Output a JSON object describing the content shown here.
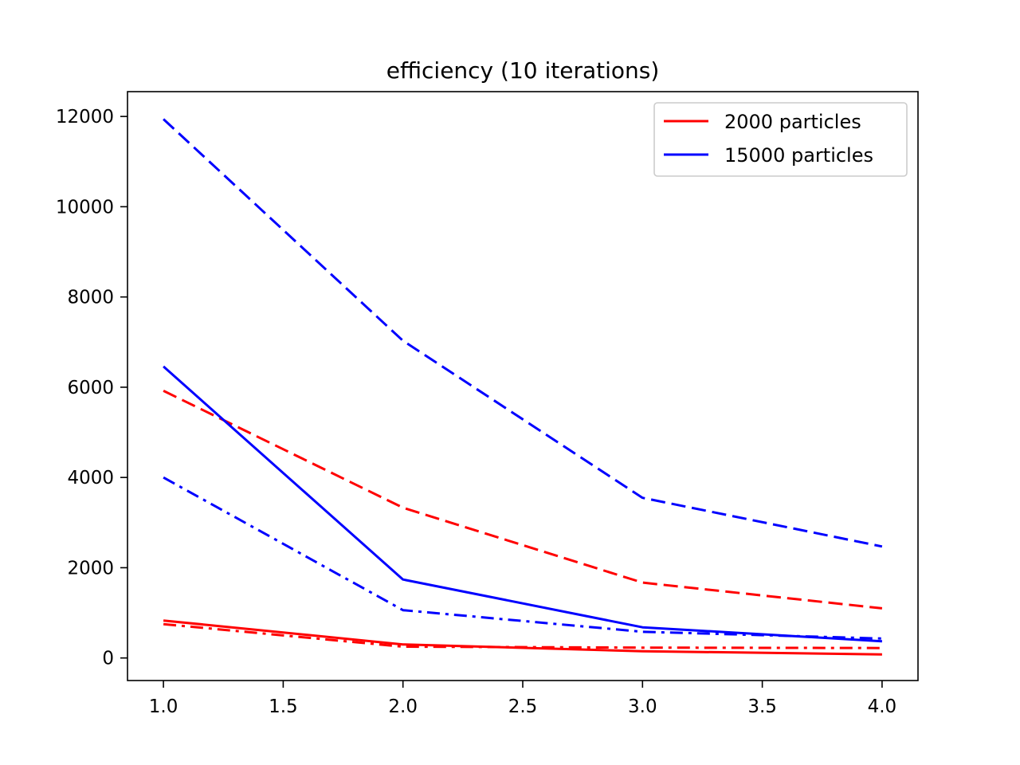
{
  "chart_data": {
    "type": "line",
    "title": "efficiency (10 iterations)",
    "xlabel": "",
    "ylabel": "",
    "x": [
      1.0,
      2.0,
      3.0,
      4.0
    ],
    "xlim": [
      0.85,
      4.15
    ],
    "ylim": [
      -500,
      12550
    ],
    "xticks": [
      "1.0",
      "1.5",
      "2.0",
      "2.5",
      "3.0",
      "3.5",
      "4.0"
    ],
    "yticks": [
      "0",
      "2000",
      "4000",
      "6000",
      "8000",
      "10000",
      "12000"
    ],
    "grid": false,
    "legend_position": "top-right",
    "legend": [
      {
        "label": "2000 particles",
        "color": "#ff0000"
      },
      {
        "label": "15000 particles",
        "color": "#0000ff"
      }
    ],
    "series": [
      {
        "color": "#ff0000",
        "style": "solid",
        "values": [
          830,
          300,
          150,
          80
        ]
      },
      {
        "color": "#ff0000",
        "style": "dashed",
        "values": [
          5920,
          3330,
          1670,
          1100
        ]
      },
      {
        "color": "#ff0000",
        "style": "dashdot",
        "values": [
          750,
          250,
          230,
          220
        ]
      },
      {
        "color": "#0000ff",
        "style": "solid",
        "values": [
          6460,
          1740,
          680,
          370
        ]
      },
      {
        "color": "#0000ff",
        "style": "dashed",
        "values": [
          11940,
          7030,
          3550,
          2470
        ]
      },
      {
        "color": "#0000ff",
        "style": "dashdot",
        "values": [
          4000,
          1060,
          580,
          430
        ]
      }
    ]
  }
}
